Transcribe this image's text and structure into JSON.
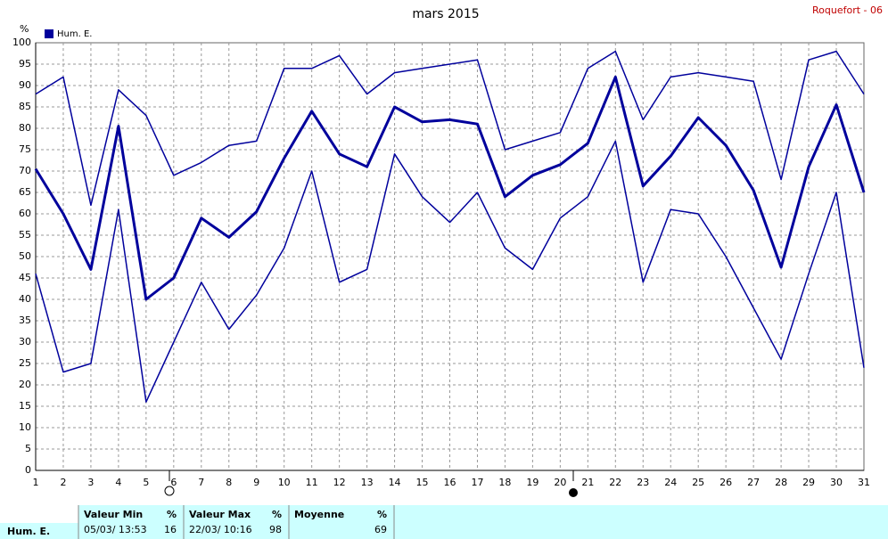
{
  "chart_data": {
    "type": "line",
    "title": "mars 2015",
    "station": "Roquefort - 06",
    "y_label": "%",
    "categories": [
      "1",
      "2",
      "3",
      "4",
      "5",
      "6",
      "7",
      "8",
      "9",
      "10",
      "11",
      "12",
      "13",
      "14",
      "15",
      "16",
      "17",
      "18",
      "19",
      "20",
      "21",
      "22",
      "23",
      "24",
      "25",
      "26",
      "27",
      "28",
      "29",
      "30",
      "31"
    ],
    "series": [
      {
        "name": "Hum. E.",
        "color": "#00009c",
        "width": 3,
        "values": [
          70.5,
          60,
          47,
          80.5,
          40,
          45,
          59,
          54.5,
          60.5,
          73,
          84,
          74,
          71,
          85,
          81.5,
          82,
          81,
          64,
          69,
          71.5,
          76.5,
          92,
          66.5,
          73.5,
          82.5,
          76,
          65.5,
          47.5,
          71,
          85.5,
          65
        ]
      },
      {
        "color": "#00009c",
        "width": 1.5,
        "values": [
          88,
          92,
          62,
          89,
          83,
          69,
          72,
          76,
          77,
          94,
          94,
          97,
          88,
          93,
          94,
          95,
          96,
          75,
          77,
          79,
          94,
          98,
          82,
          92,
          93,
          92,
          91,
          68,
          96,
          98,
          88
        ]
      },
      {
        "color": "#00009c",
        "width": 1.5,
        "values": [
          46,
          23,
          25,
          61,
          16,
          30,
          44,
          33,
          41,
          52,
          70,
          44,
          47,
          74,
          64,
          58,
          65,
          52,
          47,
          59,
          64,
          77,
          44,
          61,
          60,
          50,
          38,
          26,
          46,
          65,
          24
        ]
      }
    ],
    "ylim": [
      0,
      100
    ],
    "yticks": [
      0,
      5,
      10,
      15,
      20,
      25,
      30,
      35,
      40,
      45,
      50,
      55,
      60,
      65,
      70,
      75,
      80,
      85,
      90,
      95,
      100
    ],
    "grid": true
  },
  "stats": {
    "row_label": "Hum. E.",
    "min": {
      "header": "Valeur Min",
      "unit": "%",
      "when": "05/03/ 13:53",
      "value": 16
    },
    "max": {
      "header": "Valeur Max",
      "unit": "%",
      "when": "22/03/ 10:16",
      "value": 98
    },
    "mean": {
      "header": "Moyenne",
      "unit": "%",
      "value": 69
    }
  }
}
